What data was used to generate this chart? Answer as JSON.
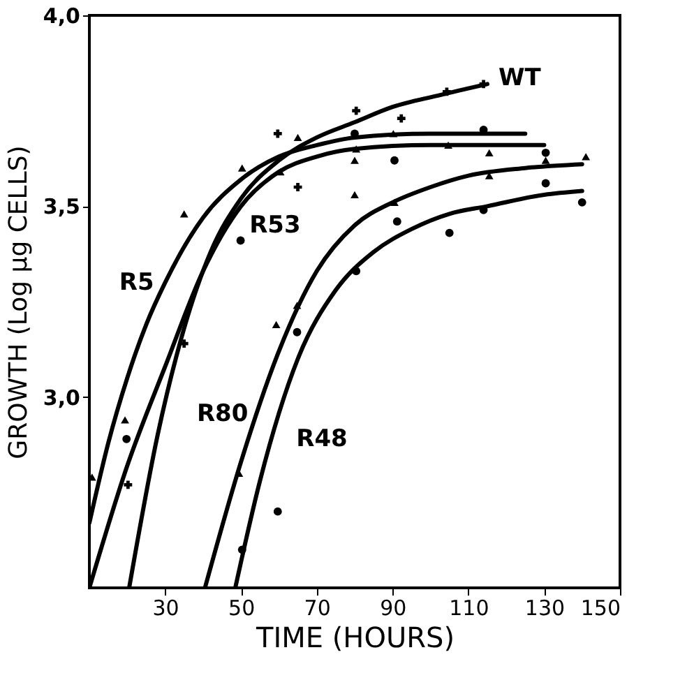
{
  "chart_data": {
    "type": "line",
    "xlabel": "TIME (HOURS)",
    "ylabel": "GROWTH (Log µg CELLS)",
    "xlim": [
      10,
      150
    ],
    "xticks": [
      30,
      50,
      70,
      90,
      110,
      130,
      150
    ],
    "ylim": [
      2.5,
      4.0
    ],
    "yticks": [
      {
        "value": 3.0,
        "label": "3,0"
      },
      {
        "value": 3.5,
        "label": "3,5"
      },
      {
        "value": 4.0,
        "label": "4,0"
      }
    ],
    "grid": false,
    "line_style": "solid",
    "series": [
      {
        "name": "WT",
        "marker": "none",
        "color": "#000000",
        "x": [
          20.5,
          28,
          35,
          42,
          50,
          60,
          70,
          80,
          90,
          102,
          115
        ],
        "values": [
          2.5,
          2.9,
          3.18,
          3.38,
          3.52,
          3.62,
          3.68,
          3.72,
          3.76,
          3.79,
          3.82
        ]
      },
      {
        "name": "R5",
        "marker": "none",
        "color": "#000000",
        "x": [
          10,
          15,
          20,
          25,
          30,
          40,
          50,
          60,
          70,
          80,
          100,
          125
        ],
        "values": [
          2.67,
          2.88,
          3.05,
          3.19,
          3.3,
          3.47,
          3.57,
          3.63,
          3.66,
          3.68,
          3.69,
          3.69
        ]
      },
      {
        "name": "R53",
        "marker": "none",
        "color": "#000000",
        "x": [
          10,
          20,
          30,
          40,
          50,
          60,
          70,
          80,
          100,
          130
        ],
        "values": [
          2.5,
          2.82,
          3.08,
          3.33,
          3.5,
          3.59,
          3.63,
          3.65,
          3.66,
          3.66
        ]
      },
      {
        "name": "R80",
        "marker": "none",
        "color": "#000000",
        "x": [
          40.5,
          50,
          60,
          70,
          80,
          90,
          100,
          110,
          125,
          140
        ],
        "values": [
          2.5,
          2.83,
          3.12,
          3.33,
          3.45,
          3.51,
          3.55,
          3.58,
          3.6,
          3.61
        ]
      },
      {
        "name": "R48",
        "marker": "none",
        "color": "#000000",
        "x": [
          48.5,
          55,
          65,
          75,
          85,
          95,
          105,
          115,
          130,
          140
        ],
        "values": [
          2.5,
          2.78,
          3.1,
          3.28,
          3.38,
          3.44,
          3.48,
          3.5,
          3.53,
          3.54
        ]
      },
      {
        "type": "scatter",
        "marker": "cross",
        "color": "#000000",
        "x": [
          20.2,
          35,
          59.7,
          65,
          80.4,
          92.3,
          104.3,
          114
        ],
        "values": [
          2.77,
          3.14,
          3.69,
          3.55,
          3.75,
          3.73,
          3.8,
          3.82
        ]
      },
      {
        "type": "scatter",
        "marker": "triangle",
        "color": "#000000",
        "x": [
          10.7,
          19.4,
          35,
          49.5,
          50.3,
          59.3,
          60.4,
          64.8,
          65,
          80,
          80,
          80.4,
          90.2,
          90.5,
          104.7,
          115.5,
          115.5,
          130.4,
          141
        ],
        "values": [
          2.79,
          2.94,
          3.48,
          2.8,
          3.6,
          3.19,
          3.59,
          3.24,
          3.68,
          3.62,
          3.53,
          3.65,
          3.69,
          3.51,
          3.66,
          3.64,
          3.58,
          3.62,
          3.63
        ]
      },
      {
        "type": "scatter",
        "marker": "circle",
        "color": "#000000",
        "x": [
          19.8,
          49.9,
          80,
          90.5,
          130.4
        ],
        "values": [
          2.89,
          3.41,
          3.69,
          3.62,
          3.64
        ]
      },
      {
        "type": "scatter",
        "marker": "circle",
        "color": "#000000",
        "x": [
          50.3,
          59.7,
          64.8,
          80.4,
          91.2,
          105,
          114,
          114,
          130.4,
          140
        ],
        "values": [
          2.6,
          2.7,
          3.17,
          3.33,
          3.46,
          3.43,
          3.7,
          3.49,
          3.56,
          3.51
        ]
      }
    ]
  }
}
